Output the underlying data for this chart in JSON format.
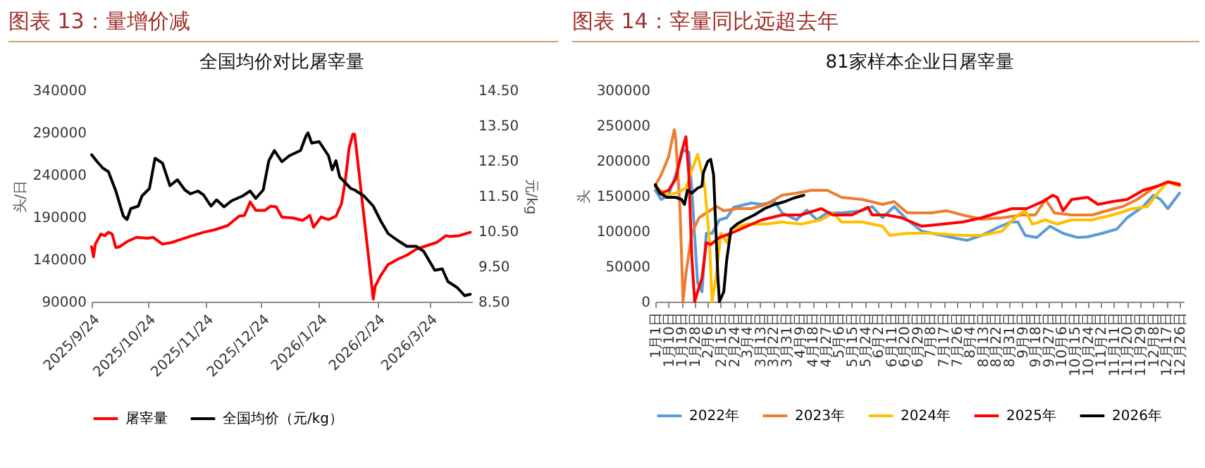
{
  "chart_data": [
    {
      "type": "line",
      "title": "图表 13：量增价减",
      "subtitle": "全国均价对比屠宰量",
      "ylabel": "头/日",
      "y2label": "元/kg",
      "legend": "bottom",
      "xlim": [
        "2025-09-24",
        "2026-04-16"
      ],
      "xticks": [
        {
          "value": "2025-09-24",
          "label": "2025/9/24"
        },
        {
          "value": "2025-10-24",
          "label": "2025/10/24"
        },
        {
          "value": "2025-11-24",
          "label": "2025/11/24"
        },
        {
          "value": "2025-12-24",
          "label": "2025/12/24"
        },
        {
          "value": "2026-01-24",
          "label": "2026/1/24"
        },
        {
          "value": "2026-02-24",
          "label": "2026/2/24"
        },
        {
          "value": "2026-03-24",
          "label": "2026/3/24"
        }
      ],
      "ylim": [
        90000,
        340000
      ],
      "yticks": [
        90000,
        140000,
        190000,
        240000,
        290000,
        340000
      ],
      "y2lim": [
        8.5,
        14.5
      ],
      "y2ticks": [
        {
          "value": 8.5,
          "label": "8.50"
        },
        {
          "value": 9.5,
          "label": "9.50"
        },
        {
          "value": 10.5,
          "label": "10.50"
        },
        {
          "value": 11.5,
          "label": "11.50"
        },
        {
          "value": 12.5,
          "label": "12.50"
        },
        {
          "value": 13.5,
          "label": "13.50"
        },
        {
          "value": 14.5,
          "label": "14.50"
        }
      ],
      "series": [
        {
          "name": "屠宰量",
          "color": "#ff0000",
          "x": [
            "2025-09-24",
            "2025-09-25",
            "2025-09-26",
            "2025-09-29",
            "2025-10-01",
            "2025-10-03",
            "2025-10-05",
            "2025-10-07",
            "2025-10-09",
            "2025-10-13",
            "2025-10-18",
            "2025-10-24",
            "2025-10-27",
            "2025-11-01",
            "2025-11-06",
            "2025-11-10",
            "2025-11-17",
            "2025-11-23",
            "2025-11-29",
            "2025-12-06",
            "2025-12-12",
            "2025-12-15",
            "2025-12-18",
            "2025-12-21",
            "2025-12-26",
            "2025-12-29",
            "2026-01-01",
            "2026-01-04",
            "2026-01-10",
            "2026-01-15",
            "2026-01-19",
            "2026-01-21",
            "2026-01-25",
            "2026-01-29",
            "2026-02-02",
            "2026-02-05",
            "2026-02-07",
            "2026-02-09",
            "2026-02-11",
            "2026-02-12",
            "2026-02-13",
            "2026-02-22",
            "2026-02-23",
            "2026-02-26",
            "2026-03-02",
            "2026-03-07",
            "2026-03-12",
            "2026-03-17",
            "2026-03-21",
            "2026-03-28",
            "2026-04-02",
            "2026-04-04",
            "2026-04-09",
            "2026-04-15"
          ],
          "values": [
            155000,
            143000,
            158000,
            170000,
            168000,
            172000,
            170000,
            154000,
            155000,
            161000,
            166000,
            165000,
            166000,
            158000,
            160000,
            163000,
            168000,
            172000,
            175000,
            180000,
            191000,
            192000,
            208000,
            198000,
            198000,
            203000,
            202000,
            190000,
            189000,
            186000,
            192000,
            178000,
            190000,
            187000,
            191000,
            206000,
            233000,
            271000,
            288000,
            288000,
            269000,
            93000,
            108000,
            121000,
            134000,
            140000,
            145000,
            152000,
            155000,
            160000,
            168000,
            167000,
            168000,
            172000
          ]
        },
        {
          "name": "全国均价（元/kg）",
          "color": "#000000",
          "axis": "y2",
          "x": [
            "2025-09-24",
            "2025-09-27",
            "2025-09-30",
            "2025-10-03",
            "2025-10-07",
            "2025-10-11",
            "2025-10-13",
            "2025-10-15",
            "2025-10-19",
            "2025-10-21",
            "2025-10-25",
            "2025-10-28",
            "2025-11-01",
            "2025-11-05",
            "2025-11-09",
            "2025-11-13",
            "2025-11-16",
            "2025-11-20",
            "2025-11-23",
            "2025-11-27",
            "2025-11-30",
            "2025-12-04",
            "2025-12-08",
            "2025-12-14",
            "2025-12-18",
            "2025-12-21",
            "2025-12-25",
            "2025-12-28",
            "2025-12-31",
            "2026-01-04",
            "2026-01-08",
            "2026-01-14",
            "2026-01-17",
            "2026-01-18",
            "2026-01-20",
            "2026-01-24",
            "2026-01-29",
            "2026-01-31",
            "2026-02-02",
            "2026-02-04",
            "2026-02-10",
            "2026-02-12",
            "2026-02-17",
            "2026-02-22",
            "2026-02-26",
            "2026-03-02",
            "2026-03-07",
            "2026-03-12",
            "2026-03-17",
            "2026-03-21",
            "2026-03-27",
            "2026-03-31",
            "2026-04-03",
            "2026-04-08",
            "2026-04-12",
            "2026-04-15"
          ],
          "values": [
            12.67,
            12.47,
            12.29,
            12.19,
            11.64,
            10.93,
            10.83,
            11.14,
            11.21,
            11.5,
            11.71,
            12.57,
            12.43,
            11.79,
            11.96,
            11.67,
            11.56,
            11.64,
            11.53,
            11.21,
            11.39,
            11.19,
            11.36,
            11.5,
            11.64,
            11.43,
            11.67,
            12.5,
            12.79,
            12.47,
            12.64,
            12.79,
            13.21,
            13.29,
            13.0,
            13.04,
            12.64,
            12.24,
            12.5,
            12.04,
            11.71,
            11.67,
            11.5,
            11.21,
            10.79,
            10.43,
            10.24,
            10.07,
            10.07,
            9.93,
            9.39,
            9.43,
            9.07,
            8.9,
            8.67,
            8.71
          ]
        }
      ]
    },
    {
      "type": "line",
      "title": "图表 14：宰量同比远超去年",
      "subtitle": "81家样本企业日屠宰量",
      "ylabel": "头",
      "legend": "bottom",
      "xlim": [
        "--01-01",
        "--12-29"
      ],
      "xticks": [
        {
          "value": "--01-01",
          "label": "1月1日"
        },
        {
          "value": "--01-10",
          "label": "1月10日"
        },
        {
          "value": "--01-19",
          "label": "1月19日"
        },
        {
          "value": "--01-28",
          "label": "1月28日"
        },
        {
          "value": "--02-06",
          "label": "2月6日"
        },
        {
          "value": "--02-15",
          "label": "2月15日"
        },
        {
          "value": "--02-24",
          "label": "2月24日"
        },
        {
          "value": "--03-04",
          "label": "3月4日"
        },
        {
          "value": "--03-13",
          "label": "3月13日"
        },
        {
          "value": "--03-22",
          "label": "3月22日"
        },
        {
          "value": "--03-31",
          "label": "3月31日"
        },
        {
          "value": "--04-09",
          "label": "4月9日"
        },
        {
          "value": "--04-18",
          "label": "4月18日"
        },
        {
          "value": "--04-27",
          "label": "4月27日"
        },
        {
          "value": "--05-06",
          "label": "5月6日"
        },
        {
          "value": "--05-15",
          "label": "5月15日"
        },
        {
          "value": "--05-24",
          "label": "5月24日"
        },
        {
          "value": "--06-02",
          "label": "6月2日"
        },
        {
          "value": "--06-11",
          "label": "6月11日"
        },
        {
          "value": "--06-20",
          "label": "6月20日"
        },
        {
          "value": "--06-29",
          "label": "6月29日"
        },
        {
          "value": "--07-08",
          "label": "7月8日"
        },
        {
          "value": "--07-17",
          "label": "7月17日"
        },
        {
          "value": "--07-26",
          "label": "7月26日"
        },
        {
          "value": "--08-04",
          "label": "8月4日"
        },
        {
          "value": "--08-13",
          "label": "8月13日"
        },
        {
          "value": "--08-22",
          "label": "8月22日"
        },
        {
          "value": "--08-31",
          "label": "8月31日"
        },
        {
          "value": "--09-09",
          "label": "9月9日"
        },
        {
          "value": "--09-18",
          "label": "9月18日"
        },
        {
          "value": "--09-27",
          "label": "9月27日"
        },
        {
          "value": "--10-06",
          "label": "10月6日"
        },
        {
          "value": "--10-15",
          "label": "10月15日"
        },
        {
          "value": "--10-24",
          "label": "10月24日"
        },
        {
          "value": "--11-02",
          "label": "11月2日"
        },
        {
          "value": "--11-11",
          "label": "11月11日"
        },
        {
          "value": "--11-20",
          "label": "11月20日"
        },
        {
          "value": "--11-29",
          "label": "11月29日"
        },
        {
          "value": "--12-08",
          "label": "12月8日"
        },
        {
          "value": "--12-17",
          "label": "12月17日"
        },
        {
          "value": "--12-26",
          "label": "12月26日"
        }
      ],
      "ylim": [
        0,
        300000
      ],
      "yticks": [
        0,
        50000,
        100000,
        150000,
        200000,
        250000,
        300000
      ],
      "series": [
        {
          "name": "2022年",
          "color": "#5b9bd5",
          "x": [
            "--01-01",
            "--01-05",
            "--01-10",
            "--01-15",
            "--01-20",
            "--01-24",
            "--01-26",
            "--01-30",
            "--02-02",
            "--02-05",
            "--02-09",
            "--02-14",
            "--02-19",
            "--02-24",
            "--03-01",
            "--03-07",
            "--03-14",
            "--03-23",
            "--03-28",
            "--04-07",
            "--04-14",
            "--04-21",
            "--04-28",
            "--05-08",
            "--05-22",
            "--05-29",
            "--06-05",
            "--06-13",
            "--06-22",
            "--07-02",
            "--07-09",
            "--07-23",
            "--08-02",
            "--08-12",
            "--08-23",
            "--09-01",
            "--09-06",
            "--09-11",
            "--09-19",
            "--09-28",
            "--10-07",
            "--10-17",
            "--10-24",
            "--11-03",
            "--11-13",
            "--11-20",
            "--12-01",
            "--12-08",
            "--12-13",
            "--12-18",
            "--12-26"
          ],
          "values": [
            158000,
            145000,
            151000,
            180000,
            215000,
            212000,
            161000,
            27000,
            14000,
            97000,
            97000,
            116000,
            119000,
            134000,
            137000,
            140000,
            138000,
            142000,
            126000,
            116000,
            130000,
            116000,
            126000,
            126000,
            129000,
            135000,
            119000,
            135000,
            116000,
            100000,
            97000,
            91000,
            87000,
            94000,
            105000,
            113000,
            113000,
            94000,
            91000,
            107000,
            97000,
            91000,
            92000,
            97000,
            103000,
            119000,
            135000,
            151000,
            145000,
            132000,
            154000
          ]
        },
        {
          "name": "2023年",
          "color": "#ed7d31",
          "x": [
            "--01-01",
            "--01-05",
            "--01-10",
            "--01-14",
            "--01-15",
            "--01-18",
            "--01-20",
            "--01-22",
            "--01-26",
            "--01-31",
            "--02-05",
            "--02-12",
            "--02-17",
            "--02-26",
            "--03-07",
            "--03-17",
            "--03-28",
            "--04-07",
            "--04-17",
            "--04-28",
            "--05-08",
            "--05-22",
            "--06-05",
            "--06-13",
            "--06-22",
            "--07-09",
            "--07-19",
            "--07-30",
            "--08-12",
            "--08-26",
            "--09-09",
            "--09-18",
            "--09-25",
            "--10-01",
            "--10-13",
            "--10-27",
            "--11-06",
            "--11-17",
            "--11-27",
            "--12-08",
            "--12-18",
            "--12-26"
          ],
          "values": [
            165000,
            180000,
            205000,
            244000,
            231000,
            129000,
            0,
            40000,
            97000,
            119000,
            126000,
            135000,
            129000,
            132000,
            132000,
            138000,
            151000,
            154000,
            158000,
            158000,
            148000,
            145000,
            138000,
            142000,
            126000,
            126000,
            129000,
            123000,
            117000,
            119000,
            123000,
            123000,
            145000,
            126000,
            123000,
            123000,
            129000,
            135000,
            145000,
            161000,
            170000,
            167000
          ]
        },
        {
          "name": "2024年",
          "color": "#ffc000",
          "x": [
            "--01-01",
            "--01-09",
            "--01-15",
            "--01-22",
            "--01-26",
            "--01-30",
            "--02-03",
            "--02-04",
            "--02-07",
            "--02-09",
            "--02-12",
            "--02-15",
            "--02-19",
            "--02-22",
            "--03-04",
            "--03-17",
            "--03-28",
            "--04-10",
            "--04-24",
            "--05-02",
            "--05-08",
            "--05-22",
            "--06-05",
            "--06-10",
            "--06-22",
            "--07-09",
            "--07-30",
            "--08-12",
            "--08-26",
            "--09-06",
            "--09-11",
            "--09-16",
            "--09-25",
            "--10-03",
            "--10-13",
            "--10-27",
            "--11-10",
            "--11-24",
            "--12-04",
            "--12-11",
            "--12-18",
            "--12-26"
          ],
          "values": [
            164000,
            151000,
            154000,
            161000,
            186000,
            209000,
            174000,
            161000,
            91000,
            0,
            40000,
            97000,
            84000,
            103000,
            110000,
            110000,
            113000,
            110000,
            116000,
            126000,
            113000,
            113000,
            107000,
            94000,
            97000,
            97000,
            94000,
            94000,
            100000,
            123000,
            129000,
            110000,
            116000,
            110000,
            116000,
            116000,
            123000,
            132000,
            135000,
            154000,
            170000,
            164000
          ]
        },
        {
          "name": "2025年",
          "color": "#ff0000",
          "x": [
            "--01-01",
            "--01-05",
            "--01-10",
            "--01-15",
            "--01-19",
            "--01-22",
            "--01-24",
            "--01-26",
            "--01-28",
            "--01-30",
            "--02-02",
            "--02-05",
            "--02-08",
            "--02-14",
            "--02-22",
            "--03-04",
            "--03-14",
            "--03-28",
            "--04-10",
            "--04-24",
            "--05-02",
            "--05-15",
            "--05-26",
            "--05-29",
            "--06-08",
            "--06-18",
            "--07-02",
            "--07-16",
            "--07-30",
            "--08-12",
            "--08-23",
            "--09-02",
            "--09-12",
            "--09-23",
            "--09-30",
            "--10-03",
            "--10-07",
            "--10-13",
            "--10-24",
            "--10-31",
            "--11-10",
            "--11-20",
            "--12-01",
            "--12-11",
            "--12-18",
            "--12-26"
          ],
          "values": [
            164000,
            154000,
            158000,
            174000,
            212000,
            234000,
            180000,
            65000,
            0,
            14000,
            33000,
            84000,
            81000,
            91000,
            97000,
            107000,
            116000,
            123000,
            123000,
            132000,
            123000,
            123000,
            134000,
            123000,
            123000,
            119000,
            107000,
            110000,
            113000,
            119000,
            126000,
            132000,
            132000,
            142000,
            151000,
            148000,
            129000,
            145000,
            148000,
            138000,
            142000,
            145000,
            158000,
            164000,
            170000,
            166000
          ]
        },
        {
          "name": "2026年",
          "color": "#000000",
          "x": [
            "--01-01",
            "--01-04",
            "--01-09",
            "--01-15",
            "--01-19",
            "--01-21",
            "--01-23",
            "--01-26",
            "--01-30",
            "--02-02",
            "--02-03",
            "--02-06",
            "--02-08",
            "--02-10",
            "--02-13",
            "--02-14",
            "--02-17",
            "--02-19",
            "--02-22",
            "--02-26",
            "--03-02",
            "--03-09",
            "--03-16",
            "--03-23",
            "--03-30",
            "--04-05",
            "--04-12"
          ],
          "values": [
            166000,
            154000,
            148000,
            148000,
            145000,
            138000,
            158000,
            154000,
            161000,
            164000,
            183000,
            199000,
            202000,
            180000,
            33000,
            0,
            14000,
            59000,
            103000,
            110000,
            116000,
            123000,
            132000,
            138000,
            142000,
            147000,
            151000
          ]
        }
      ]
    }
  ]
}
